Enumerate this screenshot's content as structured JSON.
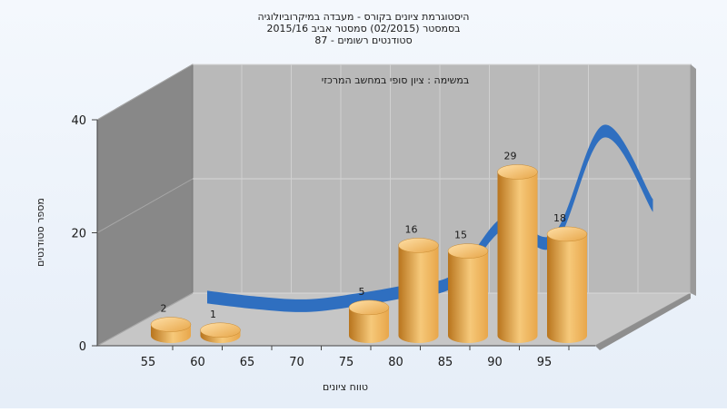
{
  "title_lines": [
    "היסטוגרמת ציונים בקורס - מעבדה במיקרוביולוגיה",
    "בסמסטר  (02/2015)  סמסטר אביב 2015/16",
    "סטודנטים רשומים - 87"
  ],
  "subtitle": "במשימה : ציון סופי במחשב המרכזי",
  "colors": {
    "bar_light": "#f6c97a",
    "bar_mid": "#e8a64a",
    "bar_dark": "#b8741d",
    "curve": "#2f6fc0",
    "curve_shadow": "#6d6d6d",
    "back_wall": "#b8b8b8",
    "side_wall": "#8a8a8a",
    "floor": "#c4c4c4"
  },
  "chart_data": {
    "type": "bar",
    "title": "היסטוגרמת ציונים בקורס - מעבדה במיקרוביולוגיה",
    "xlabel": "טווח ציונים",
    "ylabel": "מספר סטודנטים",
    "x_ticks": [
      "55",
      "60",
      "65",
      "70",
      "75",
      "80",
      "85",
      "90",
      "95"
    ],
    "y_ticks": [
      "0",
      "20",
      "40"
    ],
    "ylim": [
      0,
      40
    ],
    "grid": true,
    "bars": [
      {
        "x": 55,
        "value": 2,
        "label": "2"
      },
      {
        "x": 60,
        "value": 1,
        "label": "1"
      },
      {
        "x": 75,
        "value": 5,
        "label": "5"
      },
      {
        "x": 80,
        "value": 16,
        "label": "16"
      },
      {
        "x": 85,
        "value": 15,
        "label": "15"
      },
      {
        "x": 90,
        "value": 29,
        "label": "29"
      },
      {
        "x": 95,
        "value": 18,
        "label": "18"
      }
    ],
    "curve": {
      "x": [
        55,
        60,
        65,
        70,
        75,
        80,
        85,
        90,
        95,
        100
      ],
      "values": [
        2,
        1,
        0.5,
        1.5,
        3,
        5,
        15,
        12,
        31,
        18
      ]
    }
  }
}
